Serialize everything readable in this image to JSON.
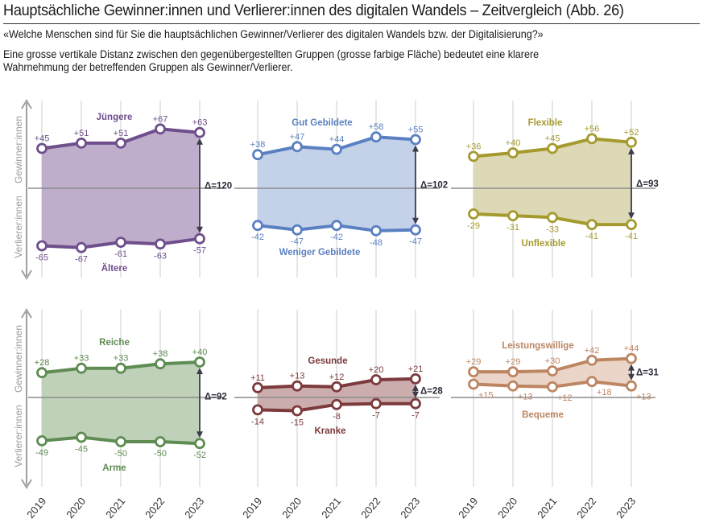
{
  "header": {
    "title": "Hauptsächliche Gewinner:innen und Verlierer:innen des digitalen Wandels – Zeitvergleich  (Abb. 26)",
    "question": "«Welche Menschen sind für Sie die hauptsächlichen Gewinner/Verlierer des digitalen Wandels bzw. der Digitalisierung?»",
    "note_line1": "Eine grosse vertikale Distanz zwischen den gegenübergestellten Gruppen (grosse farbige Fläche) bedeutet eine klarere",
    "note_line2": "Wahrnehmung der betreffenden Gruppen als Gewinner/Verlierer."
  },
  "axis_labels": {
    "winners": "Gewinner:innen",
    "losers": "Verlierer:innen"
  },
  "chart_data": {
    "type": "line",
    "x": [
      "2019",
      "2020",
      "2021",
      "2022",
      "2023"
    ],
    "grid": "vertical",
    "panels": [
      {
        "color": "#6f4e8c",
        "fill": "#bcaac8",
        "upper": {
          "name": "Jüngere",
          "values": [
            45,
            51,
            51,
            67,
            63
          ],
          "labels": [
            "+45",
            "+51",
            "+51",
            "+67",
            "+63"
          ]
        },
        "lower": {
          "name": "Ältere",
          "values": [
            -65,
            -67,
            -61,
            -63,
            -57
          ],
          "labels": [
            "-65",
            "-67",
            "-61",
            "-63",
            "-57"
          ]
        },
        "delta": "Δ=120"
      },
      {
        "color": "#5b80c2",
        "fill": "#c0cfe8",
        "upper": {
          "name": "Gut Gebildete",
          "values": [
            38,
            47,
            44,
            58,
            55
          ],
          "labels": [
            "+38",
            "+47",
            "+44",
            "+58",
            "+55"
          ]
        },
        "lower": {
          "name": "Weniger Gebildete",
          "values": [
            -42,
            -47,
            -42,
            -48,
            -47
          ],
          "labels": [
            "-42",
            "-47",
            "-42",
            "-48",
            "-47"
          ]
        },
        "delta": "Δ=102"
      },
      {
        "color": "#a59a2e",
        "fill": "#dbd6b1",
        "upper": {
          "name": "Flexible",
          "values": [
            36,
            40,
            45,
            56,
            52
          ],
          "labels": [
            "+36",
            "+40",
            "+45",
            "+56",
            "+52"
          ]
        },
        "lower": {
          "name": "Unflexible",
          "values": [
            -29,
            -31,
            -33,
            -41,
            -41
          ],
          "labels": [
            "-29",
            "-31",
            "-33",
            "-41",
            "-41"
          ]
        },
        "delta": "Δ=93"
      },
      {
        "color": "#5e8c52",
        "fill": "#bccfb5",
        "upper": {
          "name": "Reiche",
          "values": [
            28,
            33,
            33,
            38,
            40
          ],
          "labels": [
            "+28",
            "+33",
            "+33",
            "+38",
            "+40"
          ]
        },
        "lower": {
          "name": "Arme",
          "values": [
            -49,
            -45,
            -50,
            -50,
            -52
          ],
          "labels": [
            "-49",
            "-45",
            "-50",
            "-50",
            "-52"
          ]
        },
        "delta": "Δ=92"
      },
      {
        "color": "#7c3a3c",
        "fill": "#c9a9aa",
        "upper": {
          "name": "Gesunde",
          "values": [
            11,
            13,
            12,
            20,
            21
          ],
          "labels": [
            "+11",
            "+13",
            "+12",
            "+20",
            "+21"
          ]
        },
        "lower": {
          "name": "Kranke",
          "values": [
            -14,
            -15,
            -8,
            -7,
            -7
          ],
          "labels": [
            "-14",
            "-15",
            "-8",
            "-7",
            "-7"
          ]
        },
        "delta": "Δ=28"
      },
      {
        "color": "#bd8663",
        "fill": "#e9d3c5",
        "upper": {
          "name": "Leistungswillige",
          "values": [
            29,
            29,
            30,
            42,
            44
          ],
          "labels": [
            "+29",
            "+29",
            "+30",
            "+42",
            "+44"
          ]
        },
        "lower": {
          "name": "Bequeme",
          "values": [
            15,
            13,
            12,
            18,
            13
          ],
          "labels": [
            "+15",
            "+13",
            "+12",
            "+18",
            "+13"
          ]
        },
        "delta": "Δ=31"
      }
    ]
  }
}
